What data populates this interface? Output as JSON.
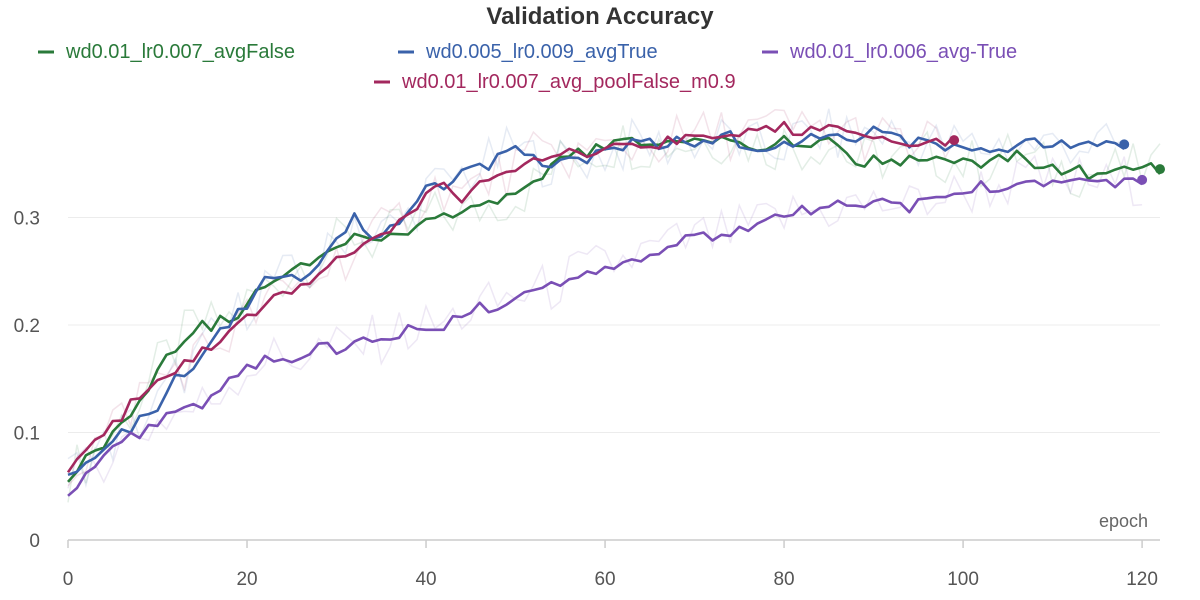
{
  "chart_data": {
    "type": "line",
    "title": "Validation Accuracy",
    "xlabel": "epoch",
    "ylabel": "",
    "xlim": [
      0,
      122
    ],
    "ylim": [
      0,
      0.4
    ],
    "x_ticks": [
      0,
      20,
      40,
      60,
      80,
      100,
      120
    ],
    "y_ticks": [
      0,
      0.1,
      0.2,
      0.3
    ],
    "y_tick_labels": [
      "0",
      "0.1",
      "0.2",
      "0.3"
    ],
    "x_tick_labels": [
      "0",
      "20",
      "40",
      "60",
      "80",
      "100",
      "120"
    ],
    "grid": true,
    "legend_position": "top",
    "series": [
      {
        "name": "wd0.01_lr0.007_avgFalse",
        "color": "#2a7a3a",
        "points": [
          [
            0,
            0.06
          ],
          [
            2,
            0.075
          ],
          [
            4,
            0.09
          ],
          [
            6,
            0.11
          ],
          [
            8,
            0.13
          ],
          [
            10,
            0.16
          ],
          [
            12,
            0.18
          ],
          [
            14,
            0.198
          ],
          [
            16,
            0.2
          ],
          [
            18,
            0.205
          ],
          [
            20,
            0.22
          ],
          [
            22,
            0.235
          ],
          [
            24,
            0.245
          ],
          [
            26,
            0.255
          ],
          [
            28,
            0.265
          ],
          [
            30,
            0.275
          ],
          [
            32,
            0.285
          ],
          [
            34,
            0.278
          ],
          [
            36,
            0.283
          ],
          [
            38,
            0.29
          ],
          [
            40,
            0.3
          ],
          [
            42,
            0.303
          ],
          [
            44,
            0.302
          ],
          [
            46,
            0.308
          ],
          [
            48,
            0.315
          ],
          [
            50,
            0.32
          ],
          [
            52,
            0.33
          ],
          [
            54,
            0.345
          ],
          [
            56,
            0.36
          ],
          [
            58,
            0.362
          ],
          [
            60,
            0.365
          ],
          [
            62,
            0.37
          ],
          [
            64,
            0.368
          ],
          [
            66,
            0.368
          ],
          [
            68,
            0.37
          ],
          [
            70,
            0.37
          ],
          [
            72,
            0.372
          ],
          [
            74,
            0.375
          ],
          [
            76,
            0.37
          ],
          [
            78,
            0.365
          ],
          [
            80,
            0.37
          ],
          [
            82,
            0.365
          ],
          [
            84,
            0.37
          ],
          [
            86,
            0.368
          ],
          [
            88,
            0.35
          ],
          [
            90,
            0.355
          ],
          [
            92,
            0.355
          ],
          [
            94,
            0.353
          ],
          [
            96,
            0.358
          ],
          [
            98,
            0.355
          ],
          [
            100,
            0.35
          ],
          [
            102,
            0.35
          ],
          [
            104,
            0.355
          ],
          [
            106,
            0.36
          ],
          [
            108,
            0.35
          ],
          [
            110,
            0.345
          ],
          [
            112,
            0.345
          ],
          [
            114,
            0.34
          ],
          [
            116,
            0.343
          ],
          [
            118,
            0.343
          ],
          [
            120,
            0.345
          ],
          [
            122,
            0.345
          ]
        ]
      },
      {
        "name": "wd0.005_lr0.009_avgTrue",
        "color": "#3a62aa",
        "points": [
          [
            0,
            0.06
          ],
          [
            2,
            0.075
          ],
          [
            4,
            0.085
          ],
          [
            6,
            0.1
          ],
          [
            8,
            0.11
          ],
          [
            10,
            0.125
          ],
          [
            12,
            0.15
          ],
          [
            14,
            0.165
          ],
          [
            16,
            0.185
          ],
          [
            18,
            0.2
          ],
          [
            20,
            0.22
          ],
          [
            22,
            0.24
          ],
          [
            24,
            0.245
          ],
          [
            26,
            0.24
          ],
          [
            28,
            0.255
          ],
          [
            30,
            0.275
          ],
          [
            32,
            0.3
          ],
          [
            34,
            0.28
          ],
          [
            36,
            0.29
          ],
          [
            38,
            0.3
          ],
          [
            40,
            0.325
          ],
          [
            42,
            0.33
          ],
          [
            44,
            0.34
          ],
          [
            46,
            0.345
          ],
          [
            48,
            0.355
          ],
          [
            50,
            0.365
          ],
          [
            52,
            0.355
          ],
          [
            54,
            0.352
          ],
          [
            56,
            0.35
          ],
          [
            58,
            0.355
          ],
          [
            60,
            0.36
          ],
          [
            62,
            0.365
          ],
          [
            64,
            0.37
          ],
          [
            66,
            0.365
          ],
          [
            68,
            0.37
          ],
          [
            70,
            0.372
          ],
          [
            72,
            0.37
          ],
          [
            74,
            0.375
          ],
          [
            76,
            0.365
          ],
          [
            78,
            0.365
          ],
          [
            80,
            0.368
          ],
          [
            82,
            0.375
          ],
          [
            84,
            0.378
          ],
          [
            86,
            0.375
          ],
          [
            88,
            0.375
          ],
          [
            90,
            0.38
          ],
          [
            92,
            0.378
          ],
          [
            94,
            0.37
          ],
          [
            96,
            0.37
          ],
          [
            98,
            0.368
          ],
          [
            100,
            0.368
          ],
          [
            102,
            0.365
          ],
          [
            104,
            0.368
          ],
          [
            106,
            0.365
          ],
          [
            108,
            0.368
          ],
          [
            110,
            0.368
          ],
          [
            112,
            0.37
          ],
          [
            114,
            0.368
          ],
          [
            116,
            0.365
          ],
          [
            118,
            0.368
          ]
        ]
      },
      {
        "name": "wd0.01_lr0.006_avg-True",
        "color": "#7a4fb5",
        "points": [
          [
            0,
            0.043
          ],
          [
            2,
            0.065
          ],
          [
            4,
            0.078
          ],
          [
            6,
            0.09
          ],
          [
            8,
            0.1
          ],
          [
            10,
            0.11
          ],
          [
            12,
            0.118
          ],
          [
            14,
            0.122
          ],
          [
            16,
            0.13
          ],
          [
            18,
            0.148
          ],
          [
            20,
            0.16
          ],
          [
            22,
            0.17
          ],
          [
            24,
            0.168
          ],
          [
            26,
            0.172
          ],
          [
            28,
            0.178
          ],
          [
            30,
            0.178
          ],
          [
            32,
            0.18
          ],
          [
            34,
            0.185
          ],
          [
            36,
            0.19
          ],
          [
            38,
            0.195
          ],
          [
            40,
            0.198
          ],
          [
            42,
            0.2
          ],
          [
            44,
            0.21
          ],
          [
            46,
            0.215
          ],
          [
            48,
            0.22
          ],
          [
            50,
            0.228
          ],
          [
            52,
            0.23
          ],
          [
            54,
            0.235
          ],
          [
            56,
            0.245
          ],
          [
            58,
            0.25
          ],
          [
            60,
            0.255
          ],
          [
            62,
            0.26
          ],
          [
            64,
            0.265
          ],
          [
            66,
            0.27
          ],
          [
            68,
            0.275
          ],
          [
            70,
            0.28
          ],
          [
            72,
            0.282
          ],
          [
            74,
            0.285
          ],
          [
            76,
            0.29
          ],
          [
            78,
            0.295
          ],
          [
            80,
            0.3
          ],
          [
            82,
            0.305
          ],
          [
            84,
            0.305
          ],
          [
            86,
            0.31
          ],
          [
            88,
            0.312
          ],
          [
            90,
            0.31
          ],
          [
            92,
            0.315
          ],
          [
            94,
            0.31
          ],
          [
            96,
            0.318
          ],
          [
            98,
            0.32
          ],
          [
            100,
            0.322
          ],
          [
            102,
            0.328
          ],
          [
            104,
            0.33
          ],
          [
            106,
            0.332
          ],
          [
            108,
            0.335
          ],
          [
            110,
            0.335
          ],
          [
            112,
            0.333
          ],
          [
            114,
            0.335
          ],
          [
            116,
            0.33
          ],
          [
            118,
            0.335
          ],
          [
            120,
            0.335
          ]
        ]
      },
      {
        "name": "wd0.01_lr0.007_avg_poolFalse_m0.9",
        "color": "#a3285e",
        "points": [
          [
            0,
            0.065
          ],
          [
            2,
            0.08
          ],
          [
            4,
            0.095
          ],
          [
            6,
            0.115
          ],
          [
            8,
            0.135
          ],
          [
            10,
            0.15
          ],
          [
            12,
            0.16
          ],
          [
            14,
            0.168
          ],
          [
            16,
            0.18
          ],
          [
            18,
            0.19
          ],
          [
            20,
            0.205
          ],
          [
            22,
            0.22
          ],
          [
            24,
            0.228
          ],
          [
            26,
            0.235
          ],
          [
            28,
            0.248
          ],
          [
            30,
            0.26
          ],
          [
            32,
            0.27
          ],
          [
            34,
            0.28
          ],
          [
            36,
            0.29
          ],
          [
            38,
            0.305
          ],
          [
            40,
            0.32
          ],
          [
            42,
            0.33
          ],
          [
            44,
            0.32
          ],
          [
            46,
            0.33
          ],
          [
            48,
            0.34
          ],
          [
            50,
            0.345
          ],
          [
            52,
            0.355
          ],
          [
            54,
            0.355
          ],
          [
            56,
            0.358
          ],
          [
            58,
            0.36
          ],
          [
            60,
            0.362
          ],
          [
            62,
            0.365
          ],
          [
            64,
            0.368
          ],
          [
            66,
            0.37
          ],
          [
            68,
            0.372
          ],
          [
            70,
            0.375
          ],
          [
            72,
            0.378
          ],
          [
            74,
            0.378
          ],
          [
            76,
            0.382
          ],
          [
            78,
            0.38
          ],
          [
            80,
            0.385
          ],
          [
            82,
            0.38
          ],
          [
            84,
            0.382
          ],
          [
            86,
            0.38
          ],
          [
            88,
            0.378
          ],
          [
            90,
            0.375
          ],
          [
            92,
            0.37
          ],
          [
            94,
            0.365
          ],
          [
            96,
            0.368
          ],
          [
            98,
            0.37
          ],
          [
            99,
            0.372
          ]
        ]
      }
    ]
  }
}
